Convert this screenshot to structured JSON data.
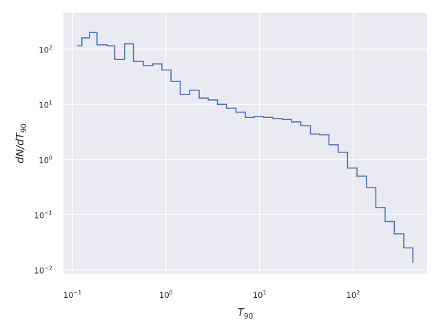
{
  "chart_data": {
    "type": "line",
    "drawstyle": "steps-post",
    "title": "",
    "xlabel": "T90",
    "ylabel": "dN/dT90",
    "xscale": "log",
    "yscale": "log",
    "xlim": [
      0.08,
      620
    ],
    "ylim": [
      0.0085,
      450
    ],
    "grid": true,
    "colors": {
      "line": "#4c72b0",
      "background": "#eaeaf2",
      "grid": "#ffffff"
    },
    "x_ticks": [
      {
        "base": "10",
        "exp": "−1",
        "value": 0.1
      },
      {
        "base": "10",
        "exp": "0",
        "value": 1
      },
      {
        "base": "10",
        "exp": "1",
        "value": 10
      },
      {
        "base": "10",
        "exp": "2",
        "value": 100
      }
    ],
    "y_ticks": [
      {
        "base": "10",
        "exp": "−2",
        "value": 0.01
      },
      {
        "base": "10",
        "exp": "−1",
        "value": 0.1
      },
      {
        "base": "10",
        "exp": "0",
        "value": 1
      },
      {
        "base": "10",
        "exp": "1",
        "value": 10
      },
      {
        "base": "10",
        "exp": "2",
        "value": 100
      }
    ],
    "series": [
      {
        "x": [
          0.112,
          0.126,
          0.152,
          0.183,
          0.234,
          0.283,
          0.361,
          0.448,
          0.572,
          0.723,
          0.904,
          1.13,
          1.42,
          1.79,
          2.26,
          2.83,
          3.55,
          4.43,
          5.59,
          7.05,
          8.81,
          11.0,
          13.9,
          17.6,
          22.0,
          27.6,
          35.0,
          43.9,
          55.2,
          69.4,
          87.2,
          110.0,
          139.0,
          175.0,
          220.0,
          276.0,
          348.0,
          435.0
        ],
        "y": [
          115,
          160,
          200,
          120,
          115,
          65,
          125,
          60,
          50,
          54,
          42,
          26,
          15,
          18,
          13,
          12,
          10,
          8.5,
          7.2,
          5.8,
          6.0,
          5.8,
          5.5,
          5.3,
          4.8,
          4.1,
          2.9,
          2.8,
          1.85,
          1.35,
          0.7,
          0.5,
          0.31,
          0.135,
          0.075,
          0.045,
          0.025,
          0.0135
        ]
      }
    ]
  }
}
